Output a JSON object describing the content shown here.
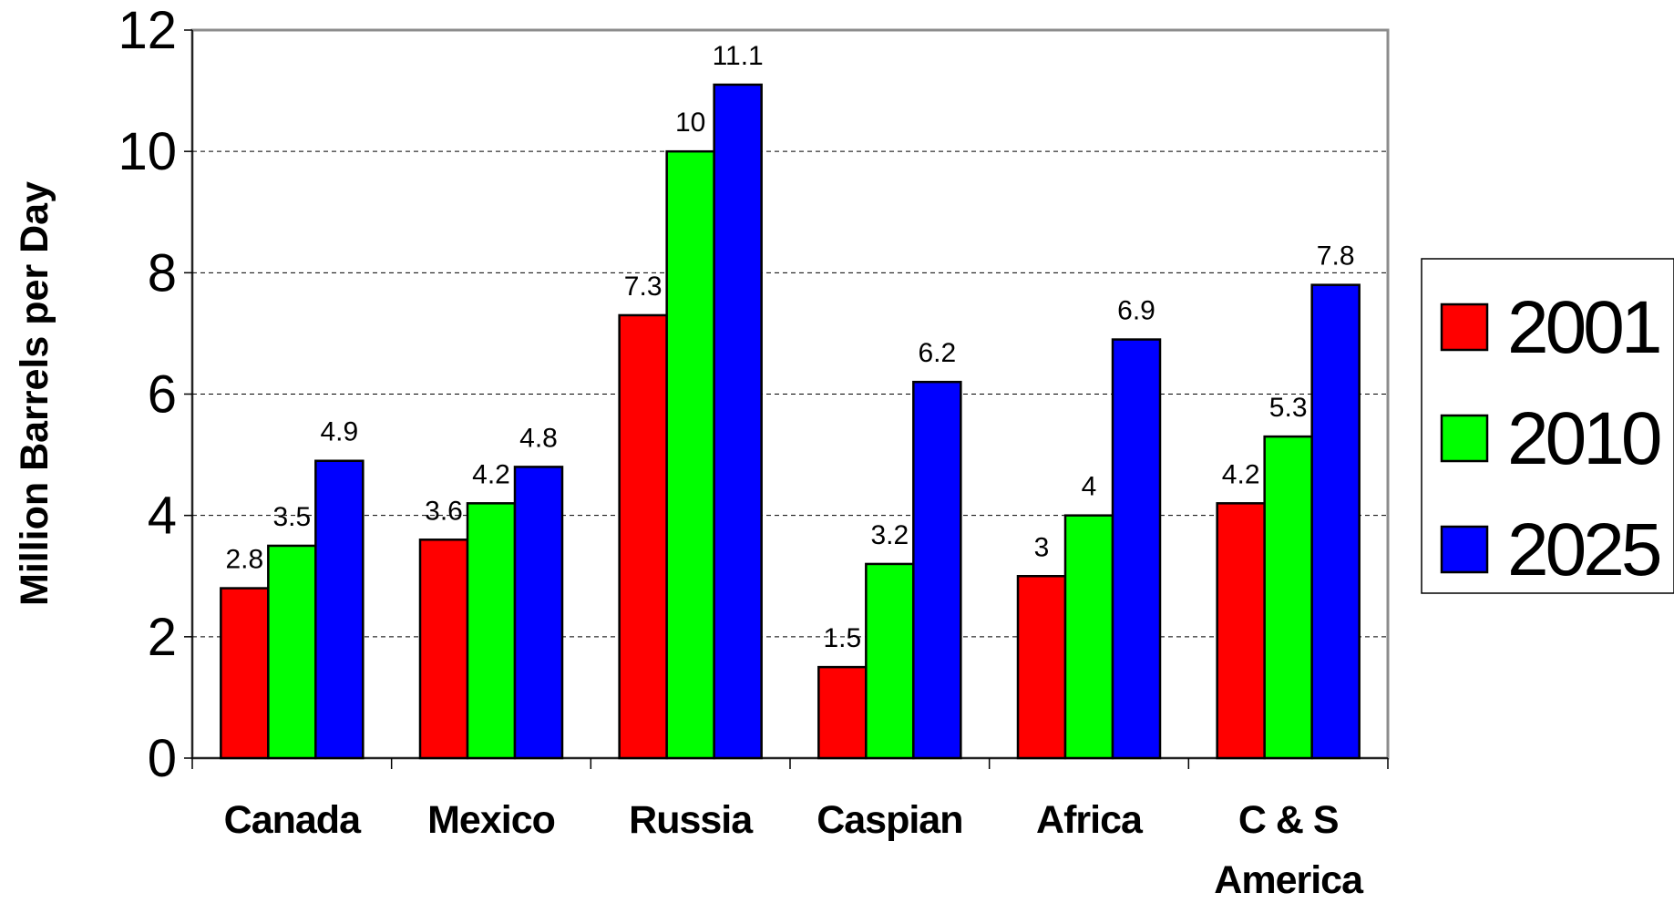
{
  "chart_data": {
    "type": "bar",
    "title": "",
    "xlabel": "",
    "ylabel": "Million Barrels per Day",
    "ylim": [
      0,
      12
    ],
    "yticks": [
      0,
      2,
      4,
      6,
      8,
      10,
      12
    ],
    "grid": true,
    "legend_position": "right",
    "categories": [
      [
        "Canada"
      ],
      [
        "Mexico"
      ],
      [
        "Russia"
      ],
      [
        "Caspian"
      ],
      [
        "Africa"
      ],
      [
        "C & S",
        "America"
      ]
    ],
    "series": [
      {
        "name": "2001",
        "color": "#ff0000",
        "values": [
          2.8,
          3.6,
          7.3,
          1.5,
          3,
          4.2
        ]
      },
      {
        "name": "2010",
        "color": "#00ff00",
        "values": [
          3.5,
          4.2,
          10,
          3.2,
          4,
          5.3
        ]
      },
      {
        "name": "2025",
        "color": "#0000ff",
        "values": [
          4.9,
          4.8,
          11.1,
          6.2,
          6.9,
          7.8
        ]
      }
    ]
  }
}
